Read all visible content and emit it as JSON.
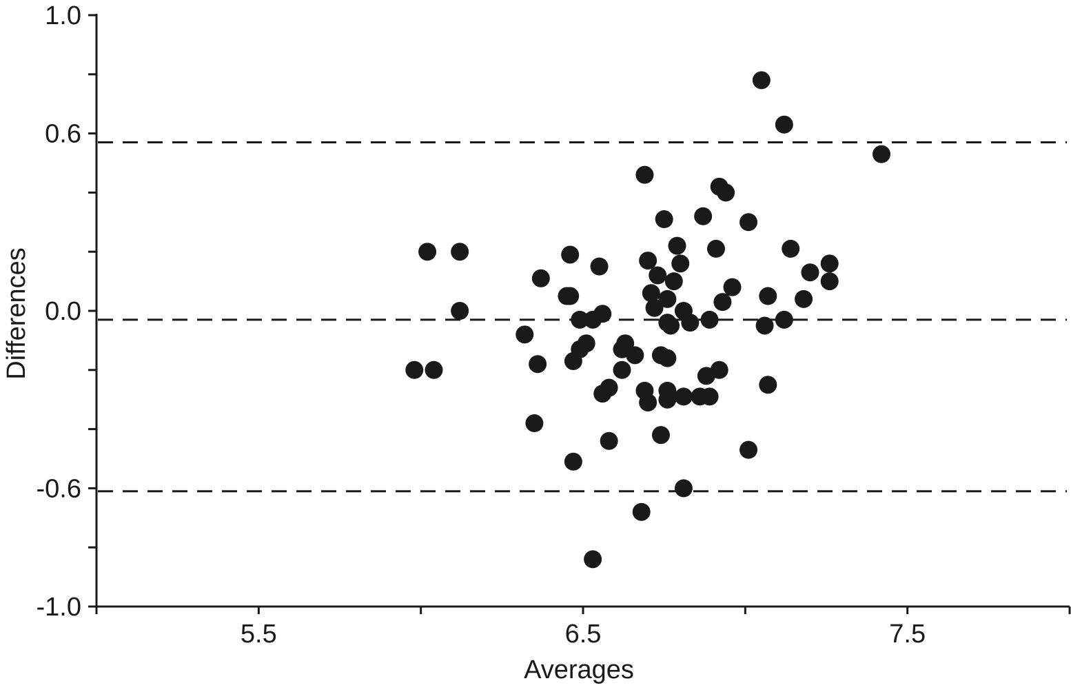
{
  "chart_data": {
    "type": "scatter",
    "title": "",
    "xlabel": "Averages",
    "ylabel": "Differences",
    "xlim": [
      5.0,
      8.0
    ],
    "ylim": [
      -1.0,
      1.0
    ],
    "x_ticks": [
      5.0,
      5.5,
      6.0,
      6.5,
      7.0,
      7.5,
      8.0
    ],
    "x_tick_labels": [
      "5.5",
      "6.5",
      "7.5"
    ],
    "x_tick_label_values": [
      5.5,
      6.5,
      7.5
    ],
    "y_ticks": [
      -1.0,
      -0.8,
      -0.6,
      -0.4,
      -0.2,
      0.0,
      0.2,
      0.4,
      0.6,
      0.8,
      1.0
    ],
    "y_tick_labels": [
      "-1.0",
      "-0.6",
      "0.0",
      "0.6",
      "1.0"
    ],
    "y_tick_label_values": [
      -1.0,
      -0.6,
      0.0,
      0.6,
      1.0
    ],
    "grid": false,
    "reference_lines": [
      {
        "y": 0.57,
        "style": "dashed"
      },
      {
        "y": -0.03,
        "style": "dashed"
      },
      {
        "y": -0.61,
        "style": "dashed"
      }
    ],
    "points": [
      [
        7.05,
        0.78
      ],
      [
        7.12,
        0.63
      ],
      [
        7.42,
        0.53
      ],
      [
        6.69,
        0.46
      ],
      [
        6.92,
        0.42
      ],
      [
        6.94,
        0.4
      ],
      [
        6.75,
        0.31
      ],
      [
        6.87,
        0.32
      ],
      [
        7.01,
        0.3
      ],
      [
        6.79,
        0.22
      ],
      [
        6.91,
        0.21
      ],
      [
        7.14,
        0.21
      ],
      [
        6.02,
        0.2
      ],
      [
        6.12,
        0.2
      ],
      [
        6.46,
        0.19
      ],
      [
        6.7,
        0.17
      ],
      [
        6.8,
        0.16
      ],
      [
        7.26,
        0.16
      ],
      [
        6.55,
        0.15
      ],
      [
        6.73,
        0.12
      ],
      [
        7.2,
        0.13
      ],
      [
        6.37,
        0.11
      ],
      [
        6.78,
        0.1
      ],
      [
        7.26,
        0.1
      ],
      [
        6.71,
        0.06
      ],
      [
        6.96,
        0.08
      ],
      [
        6.45,
        0.05
      ],
      [
        6.46,
        0.05
      ],
      [
        7.07,
        0.05
      ],
      [
        6.76,
        0.04
      ],
      [
        6.93,
        0.03
      ],
      [
        7.18,
        0.04
      ],
      [
        6.12,
        0.0
      ],
      [
        6.72,
        0.01
      ],
      [
        6.81,
        0.0
      ],
      [
        6.56,
        -0.01
      ],
      [
        6.49,
        -0.03
      ],
      [
        6.53,
        -0.03
      ],
      [
        6.76,
        -0.04
      ],
      [
        6.89,
        -0.03
      ],
      [
        7.12,
        -0.03
      ],
      [
        6.77,
        -0.05
      ],
      [
        6.83,
        -0.04
      ],
      [
        7.06,
        -0.05
      ],
      [
        6.32,
        -0.08
      ],
      [
        6.51,
        -0.11
      ],
      [
        6.63,
        -0.11
      ],
      [
        6.49,
        -0.13
      ],
      [
        6.62,
        -0.13
      ],
      [
        6.66,
        -0.15
      ],
      [
        6.74,
        -0.15
      ],
      [
        6.76,
        -0.16
      ],
      [
        6.47,
        -0.17
      ],
      [
        5.98,
        -0.2
      ],
      [
        6.04,
        -0.2
      ],
      [
        6.36,
        -0.18
      ],
      [
        6.62,
        -0.2
      ],
      [
        6.88,
        -0.22
      ],
      [
        6.92,
        -0.2
      ],
      [
        6.58,
        -0.26
      ],
      [
        6.56,
        -0.28
      ],
      [
        6.69,
        -0.27
      ],
      [
        6.76,
        -0.27
      ],
      [
        6.76,
        -0.3
      ],
      [
        6.81,
        -0.29
      ],
      [
        6.86,
        -0.29
      ],
      [
        6.89,
        -0.29
      ],
      [
        7.07,
        -0.25
      ],
      [
        6.7,
        -0.31
      ],
      [
        6.35,
        -0.38
      ],
      [
        6.58,
        -0.44
      ],
      [
        6.74,
        -0.42
      ],
      [
        7.01,
        -0.47
      ],
      [
        6.47,
        -0.51
      ],
      [
        6.81,
        -0.6
      ],
      [
        6.68,
        -0.68
      ],
      [
        6.53,
        -0.84
      ]
    ]
  }
}
